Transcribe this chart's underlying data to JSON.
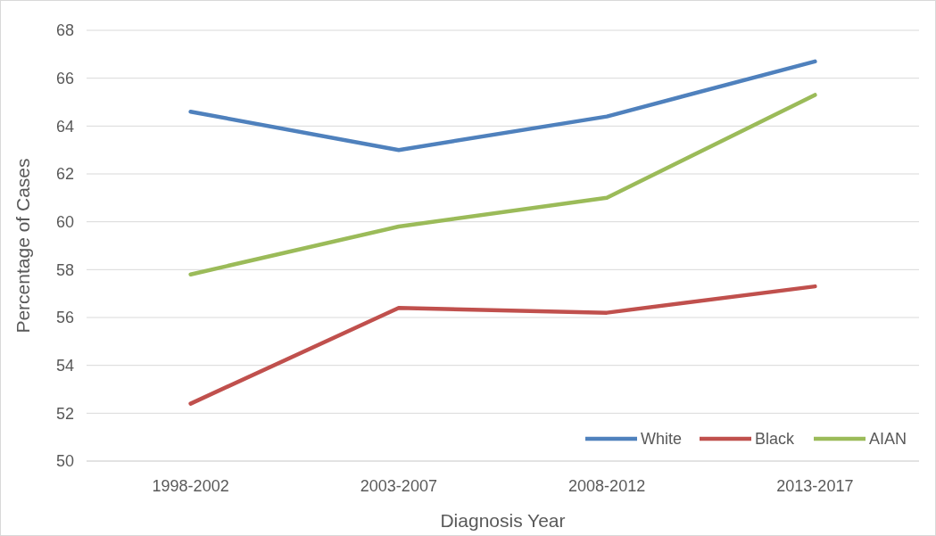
{
  "chart_data": {
    "type": "line",
    "xlabel": "Diagnosis Year",
    "ylabel": "Percentage of Cases",
    "categories": [
      "1998-2002",
      "2003-2007",
      "2008-2012",
      "2013-2017"
    ],
    "series": [
      {
        "name": "White",
        "color": "#4f81bd",
        "values": [
          64.6,
          63.0,
          64.4,
          66.7
        ]
      },
      {
        "name": "Black",
        "color": "#c0504d",
        "values": [
          52.4,
          56.4,
          56.2,
          57.3
        ]
      },
      {
        "name": "AIAN",
        "color": "#9bbb59",
        "values": [
          57.8,
          59.8,
          61.0,
          65.3
        ]
      }
    ],
    "ylim": [
      50,
      68
    ],
    "yticks": [
      50,
      52,
      54,
      56,
      58,
      60,
      62,
      64,
      66,
      68
    ],
    "grid": "y",
    "legend": "bottom right",
    "marker": "none",
    "line_style": "solid"
  }
}
